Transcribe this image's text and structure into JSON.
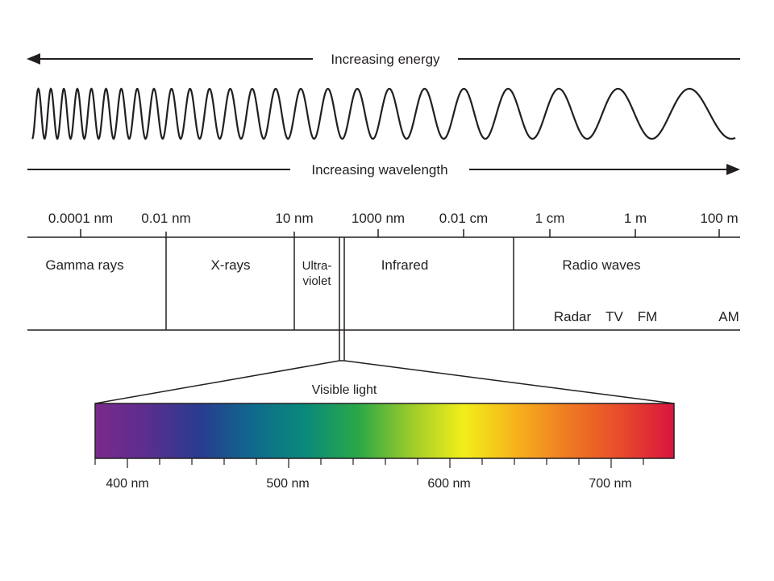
{
  "energy_arrow_label": "Increasing energy",
  "wavelength_arrow_label": "Increasing wavelength",
  "scale_ticks": [
    "0.0001 nm",
    "0.01 nm",
    "10 nm",
    "1000 nm",
    "0.01 cm",
    "1 cm",
    "1 m",
    "100 m"
  ],
  "bands": {
    "gamma": "Gamma rays",
    "xrays": "X-rays",
    "uv_line1": "Ultra-",
    "uv_line2": "violet",
    "infrared": "Infrared",
    "radio": "Radio waves"
  },
  "radio_sub": [
    "Radar",
    "TV",
    "FM",
    "AM"
  ],
  "visible_label": "Visible light",
  "visible_ticks": [
    "400 nm",
    "500 nm",
    "600 nm",
    "700 nm"
  ],
  "spectrum_colors": [
    "#7b2a8c",
    "#5a2e8e",
    "#283c8f",
    "#0f6a8e",
    "#0a8a7a",
    "#2aa847",
    "#9ccb2a",
    "#f2ef1a",
    "#f7b11c",
    "#ee7a23",
    "#e84a2b",
    "#d9143f"
  ],
  "stroke_color": "#231f20"
}
